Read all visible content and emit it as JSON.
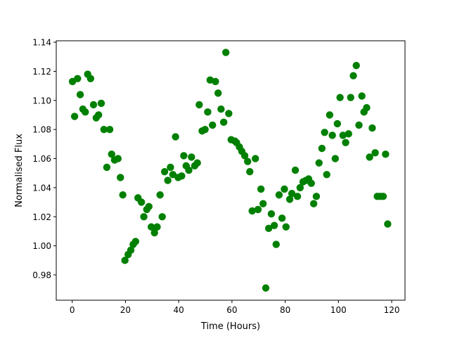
{
  "chart_data": {
    "type": "scatter",
    "title": "",
    "xlabel": "Time (Hours)",
    "ylabel": "Normalised Flux",
    "xlim": [
      -6,
      125
    ],
    "ylim": [
      0.9626,
      1.141
    ],
    "xticks": [
      0,
      20,
      40,
      60,
      80,
      100,
      120
    ],
    "xtick_labels": [
      "0",
      "20",
      "40",
      "60",
      "80",
      "100",
      "120"
    ],
    "yticks": [
      0.98,
      1.0,
      1.02,
      1.04,
      1.06,
      1.08,
      1.1,
      1.12,
      1.14
    ],
    "ytick_labels": [
      "0.98",
      "1.00",
      "1.02",
      "1.04",
      "1.06",
      "1.08",
      "1.10",
      "1.12",
      "1.14"
    ],
    "grid": false,
    "marker_color": "#008000",
    "x": [
      0.1,
      0.9,
      2.0,
      3.0,
      4.0,
      4.9,
      5.8,
      6.9,
      8.0,
      9.0,
      9.9,
      10.9,
      11.9,
      13.0,
      14.1,
      14.8,
      15.9,
      17.2,
      18.1,
      19.0,
      19.8,
      21.0,
      22.0,
      22.9,
      23.8,
      24.7,
      26.0,
      26.9,
      28.0,
      28.8,
      29.7,
      30.9,
      31.9,
      33.0,
      33.8,
      34.7,
      35.9,
      36.9,
      37.8,
      38.8,
      39.8,
      41.1,
      41.9,
      42.8,
      43.8,
      44.8,
      46.0,
      47.0,
      47.7,
      48.8,
      49.9,
      50.9,
      51.8,
      52.7,
      53.8,
      54.8,
      55.9,
      56.9,
      57.7,
      58.8,
      59.7,
      61.1,
      61.7,
      62.8,
      63.7,
      64.8,
      65.9,
      66.7,
      67.6,
      68.8,
      69.8,
      70.9,
      71.7,
      72.7,
      73.8,
      74.8,
      75.9,
      76.6,
      77.7,
      78.8,
      79.7,
      80.3,
      81.7,
      82.5,
      83.8,
      84.6,
      85.6,
      86.7,
      87.8,
      88.8,
      89.8,
      90.7,
      91.7,
      92.7,
      93.8,
      94.8,
      95.6,
      96.7,
      97.7,
      98.8,
      99.6,
      100.6,
      101.7,
      102.7,
      103.8,
      104.6,
      105.6,
      106.7,
      107.7,
      108.8,
      109.6,
      110.6,
      111.7,
      112.7,
      113.8,
      114.6,
      115.7,
      116.8,
      117.7,
      118.5
    ],
    "y": [
      1.113,
      1.089,
      1.115,
      1.104,
      1.094,
      1.092,
      1.118,
      1.115,
      1.097,
      1.088,
      1.09,
      1.098,
      1.08,
      1.054,
      1.08,
      1.063,
      1.059,
      1.06,
      1.047,
      1.035,
      0.99,
      0.994,
      0.997,
      1.001,
      1.003,
      1.033,
      1.03,
      1.02,
      1.025,
      1.027,
      1.013,
      1.009,
      1.013,
      1.035,
      1.02,
      1.051,
      1.045,
      1.054,
      1.049,
      1.075,
      1.047,
      1.048,
      1.062,
      1.055,
      1.052,
      1.061,
      1.055,
      1.057,
      1.097,
      1.079,
      1.08,
      1.092,
      1.114,
      1.083,
      1.113,
      1.105,
      1.094,
      1.085,
      1.133,
      1.091,
      1.073,
      1.072,
      1.071,
      1.068,
      1.065,
      1.062,
      1.058,
      1.051,
      1.024,
      1.06,
      1.025,
      1.039,
      1.029,
      0.971,
      1.012,
      1.022,
      1.014,
      1.001,
      1.035,
      1.019,
      1.039,
      1.013,
      1.032,
      1.036,
      1.052,
      1.034,
      1.04,
      1.044,
      1.045,
      1.046,
      1.043,
      1.029,
      1.034,
      1.057,
      1.067,
      1.078,
      1.049,
      1.09,
      1.076,
      1.06,
      1.084,
      1.102,
      1.076,
      1.071,
      1.077,
      1.102,
      1.117,
      1.124,
      1.083,
      1.103,
      1.092,
      1.095,
      1.061,
      1.081,
      1.064,
      1.034,
      1.034,
      1.034,
      1.063,
      1.015
    ]
  }
}
